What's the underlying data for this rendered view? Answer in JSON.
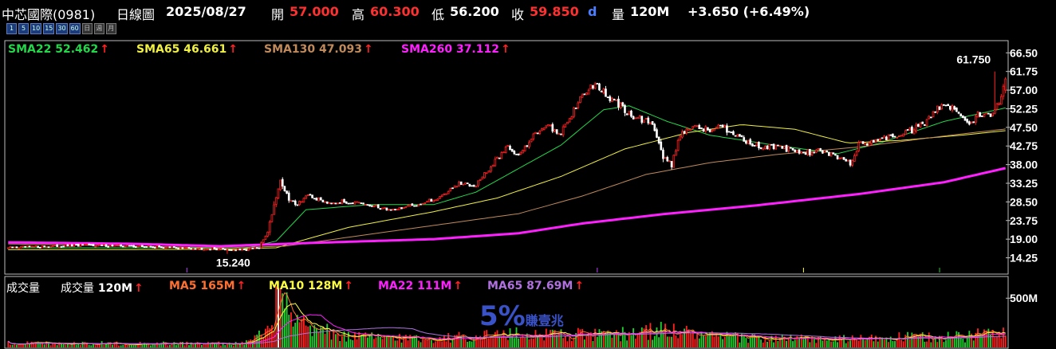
{
  "header": {
    "stock": "中芯國際(0981)",
    "chart_kind": "日線圖",
    "date": "2025/08/27",
    "open_label": "開",
    "open": "57.000",
    "high_label": "高",
    "high": "60.300",
    "low_label": "低",
    "low": "56.200",
    "close_label": "收",
    "close": "59.850",
    "close_flag": "d",
    "volume_label": "量",
    "volume": "120M",
    "change": "+3.650 (+6.49%)"
  },
  "timeframes": [
    "1",
    "5",
    "10",
    "15",
    "30",
    "60",
    "日",
    "週",
    "月"
  ],
  "price_legend": [
    {
      "label": "SMA22",
      "value": "52.462",
      "arrow": "↑",
      "color": "#22d84a"
    },
    {
      "label": "SMA65",
      "value": "46.661",
      "arrow": "↑",
      "color": "#f0f040"
    },
    {
      "label": "SMA130",
      "value": "47.093",
      "arrow": "↑",
      "color": "#c08a5a"
    },
    {
      "label": "SMA260",
      "value": "37.112",
      "arrow": "↑",
      "color": "#ff20ff"
    }
  ],
  "volume_title": "成交量",
  "volume_legend": [
    {
      "label": "成交量",
      "value": "120M",
      "arrow": "↑",
      "color": "#ffffff"
    },
    {
      "label": "MA5",
      "value": "165M",
      "arrow": "↑",
      "color": "#ff7030"
    },
    {
      "label": "MA10",
      "value": "128M",
      "arrow": "↑",
      "color": "#ffff40"
    },
    {
      "label": "MA22",
      "value": "111M",
      "arrow": "↑",
      "color": "#ff20ff"
    },
    {
      "label": "MA65",
      "value": "87.69M",
      "arrow": "↑",
      "color": "#b070e0"
    }
  ],
  "watermark": {
    "big": "5%",
    "small": "賺壹兆"
  },
  "chart_data": {
    "type": "candlestick",
    "y_ticks": [
      66.5,
      61.75,
      57.0,
      52.25,
      47.5,
      42.75,
      38.0,
      33.25,
      28.5,
      23.75,
      19.0,
      14.25
    ],
    "y_tick_labels": [
      "66.50",
      "61.75",
      "57.00",
      "52.25",
      "47.50",
      "42.75",
      "38.00",
      "33.25",
      "28.50",
      "23.75",
      "19.00",
      "14.25"
    ],
    "ylim": [
      10.5,
      69.0
    ],
    "annotations": [
      {
        "text": "61.750",
        "price": 61.75,
        "note": "high"
      },
      {
        "text": "15.240",
        "price": 15.24,
        "note": "low"
      }
    ],
    "volume_axis": {
      "tick": 500,
      "tick_label": "500M",
      "ylim": [
        0,
        680
      ]
    },
    "price_path_keypoints": [
      [
        0,
        16.8
      ],
      [
        20,
        17.2
      ],
      [
        40,
        17.5
      ],
      [
        60,
        17.2
      ],
      [
        80,
        16.8
      ],
      [
        100,
        16.5
      ],
      [
        110,
        16.2
      ],
      [
        118,
        16.8
      ],
      [
        122,
        21
      ],
      [
        126,
        30
      ],
      [
        128,
        34
      ],
      [
        132,
        29
      ],
      [
        136,
        28
      ],
      [
        140,
        30
      ],
      [
        150,
        28.5
      ],
      [
        160,
        28.5
      ],
      [
        170,
        27.5
      ],
      [
        180,
        26.5
      ],
      [
        190,
        27.5
      ],
      [
        200,
        29
      ],
      [
        205,
        30.5
      ],
      [
        212,
        33
      ],
      [
        220,
        33
      ],
      [
        228,
        38
      ],
      [
        235,
        43
      ],
      [
        240,
        40
      ],
      [
        246,
        45
      ],
      [
        252,
        48
      ],
      [
        260,
        46
      ],
      [
        266,
        52
      ],
      [
        272,
        57
      ],
      [
        276,
        59
      ],
      [
        282,
        55
      ],
      [
        288,
        53
      ],
      [
        294,
        50
      ],
      [
        300,
        49
      ],
      [
        304,
        47.5
      ],
      [
        308,
        40
      ],
      [
        312,
        38
      ],
      [
        316,
        46
      ],
      [
        322,
        47.5
      ],
      [
        330,
        47
      ],
      [
        336,
        47.5
      ],
      [
        342,
        46
      ],
      [
        350,
        43
      ],
      [
        358,
        42.5
      ],
      [
        366,
        42
      ],
      [
        374,
        41
      ],
      [
        382,
        41.5
      ],
      [
        390,
        40
      ],
      [
        396,
        38.5
      ],
      [
        400,
        43
      ],
      [
        406,
        44
      ],
      [
        414,
        45
      ],
      [
        422,
        46
      ],
      [
        430,
        48
      ],
      [
        436,
        52
      ],
      [
        442,
        53
      ],
      [
        448,
        51
      ],
      [
        452,
        48
      ],
      [
        456,
        51
      ],
      [
        462,
        51
      ],
      [
        466,
        54
      ],
      [
        468,
        58
      ],
      [
        469,
        59.85
      ]
    ],
    "ma_keypoints": {
      "SMA22": [
        [
          0,
          16.8
        ],
        [
          80,
          16.8
        ],
        [
          110,
          16.5
        ],
        [
          126,
          18.5
        ],
        [
          140,
          26.5
        ],
        [
          170,
          27.8
        ],
        [
          200,
          27.8
        ],
        [
          220,
          31
        ],
        [
          240,
          37
        ],
        [
          260,
          43
        ],
        [
          280,
          52
        ],
        [
          292,
          53
        ],
        [
          310,
          49
        ],
        [
          330,
          45.5
        ],
        [
          360,
          43
        ],
        [
          390,
          40.8
        ],
        [
          410,
          43.5
        ],
        [
          440,
          49
        ],
        [
          469,
          52.462
        ]
      ],
      "SMA65": [
        [
          0,
          16.3
        ],
        [
          100,
          16.4
        ],
        [
          126,
          16.8
        ],
        [
          160,
          22
        ],
        [
          200,
          26
        ],
        [
          230,
          29.5
        ],
        [
          260,
          35
        ],
        [
          290,
          42
        ],
        [
          320,
          46.2
        ],
        [
          345,
          48.2
        ],
        [
          370,
          47
        ],
        [
          395,
          43.5
        ],
        [
          420,
          44.2
        ],
        [
          450,
          45.6
        ],
        [
          469,
          46.661
        ]
      ],
      "SMA130": [
        [
          0,
          17.8
        ],
        [
          100,
          16.8
        ],
        [
          130,
          17.2
        ],
        [
          160,
          19.5
        ],
        [
          200,
          22.5
        ],
        [
          240,
          25.5
        ],
        [
          270,
          30
        ],
        [
          300,
          35.5
        ],
        [
          330,
          38.5
        ],
        [
          360,
          40.5
        ],
        [
          400,
          42.5
        ],
        [
          440,
          45.3
        ],
        [
          469,
          47.093
        ]
      ],
      "SMA260": [
        [
          0,
          18.2
        ],
        [
          60,
          17.8
        ],
        [
          100,
          17.2
        ],
        [
          140,
          18
        ],
        [
          200,
          19
        ],
        [
          240,
          20.5
        ],
        [
          270,
          23
        ],
        [
          310,
          25.5
        ],
        [
          350,
          27.5
        ],
        [
          400,
          30.5
        ],
        [
          440,
          33.5
        ],
        [
          469,
          37.112
        ]
      ]
    },
    "volume_profile": [
      [
        0,
        45
      ],
      [
        60,
        40
      ],
      [
        110,
        40
      ],
      [
        122,
        150
      ],
      [
        126,
        400
      ],
      [
        128,
        460
      ],
      [
        132,
        260
      ],
      [
        140,
        200
      ],
      [
        160,
        110
      ],
      [
        200,
        90
      ],
      [
        230,
        130
      ],
      [
        260,
        140
      ],
      [
        280,
        120
      ],
      [
        310,
        180
      ],
      [
        330,
        110
      ],
      [
        360,
        90
      ],
      [
        390,
        80
      ],
      [
        420,
        100
      ],
      [
        450,
        110
      ],
      [
        462,
        160
      ],
      [
        466,
        250
      ],
      [
        469,
        120
      ]
    ]
  }
}
